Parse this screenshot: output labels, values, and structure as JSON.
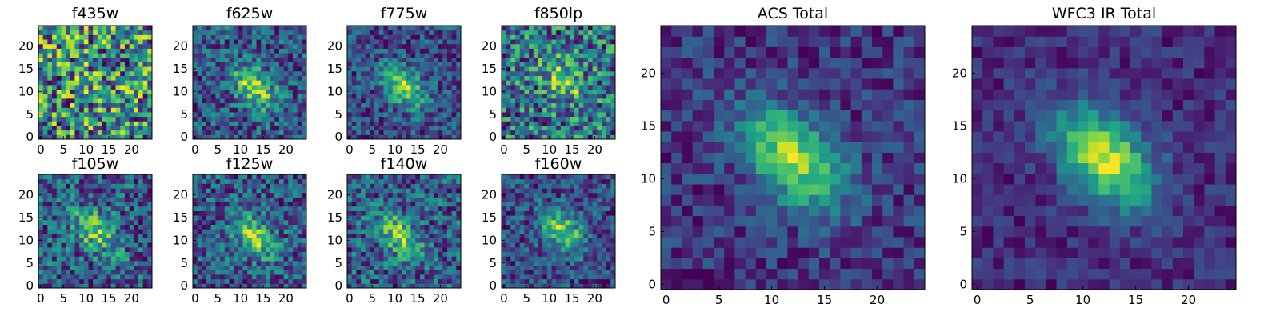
{
  "figure": {
    "description_free": true
  },
  "chart_data": [
    {
      "type": "heatmap",
      "title": "f435w",
      "grid_size": 25,
      "colormap": "viridis",
      "hotspot": {
        "x": 12,
        "y": 12
      },
      "signal_strength": 0.05,
      "noise": 0.85,
      "seed": 11,
      "xticks": [
        0,
        5,
        10,
        15,
        20
      ],
      "yticks": [
        0,
        5,
        10,
        15,
        20
      ],
      "xlim": [
        0,
        25
      ],
      "ylim": [
        0,
        25
      ]
    },
    {
      "type": "heatmap",
      "title": "f625w",
      "grid_size": 25,
      "colormap": "viridis",
      "hotspot": {
        "x": 13,
        "y": 11
      },
      "signal_strength": 0.55,
      "noise": 0.55,
      "seed": 23,
      "xticks": [
        0,
        5,
        10,
        15,
        20
      ],
      "yticks": [
        0,
        5,
        10,
        15,
        20
      ],
      "xlim": [
        0,
        25
      ],
      "ylim": [
        0,
        25
      ]
    },
    {
      "type": "heatmap",
      "title": "f775w",
      "grid_size": 25,
      "colormap": "viridis",
      "hotspot": {
        "x": 12,
        "y": 11
      },
      "signal_strength": 0.6,
      "noise": 0.5,
      "seed": 37,
      "xticks": [
        0,
        5,
        10,
        15,
        20
      ],
      "yticks": [
        0,
        5,
        10,
        15,
        20
      ],
      "xlim": [
        0,
        25
      ],
      "ylim": [
        0,
        25
      ]
    },
    {
      "type": "heatmap",
      "title": "f850lp",
      "grid_size": 25,
      "colormap": "viridis",
      "hotspot": {
        "x": 13,
        "y": 13
      },
      "signal_strength": 0.35,
      "noise": 0.7,
      "seed": 41,
      "xticks": [
        0,
        5,
        10,
        15,
        20
      ],
      "yticks": [
        0,
        5,
        10,
        15,
        20
      ],
      "xlim": [
        0,
        25
      ],
      "ylim": [
        0,
        25
      ]
    },
    {
      "type": "heatmap",
      "title": "f105w",
      "grid_size": 25,
      "colormap": "viridis",
      "hotspot": {
        "x": 12,
        "y": 12
      },
      "signal_strength": 0.4,
      "noise": 0.55,
      "seed": 53,
      "xticks": [
        0,
        5,
        10,
        15,
        20
      ],
      "yticks": [
        0,
        5,
        10,
        15,
        20
      ],
      "xlim": [
        0,
        25
      ],
      "ylim": [
        0,
        25
      ]
    },
    {
      "type": "heatmap",
      "title": "f125w",
      "grid_size": 25,
      "colormap": "viridis",
      "hotspot": {
        "x": 13,
        "y": 11
      },
      "signal_strength": 0.45,
      "noise": 0.5,
      "seed": 67,
      "xticks": [
        0,
        5,
        10,
        15,
        20
      ],
      "yticks": [
        0,
        5,
        10,
        15,
        20
      ],
      "xlim": [
        0,
        25
      ],
      "ylim": [
        0,
        25
      ]
    },
    {
      "type": "heatmap",
      "title": "f140w",
      "grid_size": 25,
      "colormap": "viridis",
      "hotspot": {
        "x": 11,
        "y": 11
      },
      "signal_strength": 0.45,
      "noise": 0.55,
      "seed": 71,
      "xticks": [
        0,
        5,
        10,
        15,
        20
      ],
      "yticks": [
        0,
        5,
        10,
        15,
        20
      ],
      "xlim": [
        0,
        25
      ],
      "ylim": [
        0,
        25
      ]
    },
    {
      "type": "heatmap",
      "title": "f160w",
      "grid_size": 25,
      "colormap": "viridis",
      "hotspot": {
        "x": 13,
        "y": 12
      },
      "signal_strength": 0.55,
      "noise": 0.45,
      "seed": 83,
      "xticks": [
        0,
        5,
        10,
        15,
        20
      ],
      "yticks": [
        0,
        5,
        10,
        15,
        20
      ],
      "xlim": [
        0,
        25
      ],
      "ylim": [
        0,
        25
      ]
    },
    {
      "type": "heatmap",
      "title": "ACS Total",
      "grid_size": 25,
      "colormap": "viridis",
      "hotspot": {
        "x": 12,
        "y": 12
      },
      "signal_strength": 0.75,
      "noise": 0.35,
      "seed": 97,
      "xticks": [
        0,
        5,
        10,
        15,
        20
      ],
      "yticks": [
        0,
        5,
        10,
        15,
        20
      ],
      "xlim": [
        0,
        25
      ],
      "ylim": [
        0,
        25
      ]
    },
    {
      "type": "heatmap",
      "title": "WFC3 IR Total",
      "grid_size": 25,
      "colormap": "viridis",
      "hotspot": {
        "x": 12,
        "y": 12
      },
      "signal_strength": 0.8,
      "noise": 0.25,
      "seed": 103,
      "xticks": [
        0,
        5,
        10,
        15,
        20
      ],
      "yticks": [
        0,
        5,
        10,
        15,
        20
      ],
      "xlim": [
        0,
        25
      ],
      "ylim": [
        0,
        25
      ]
    }
  ]
}
